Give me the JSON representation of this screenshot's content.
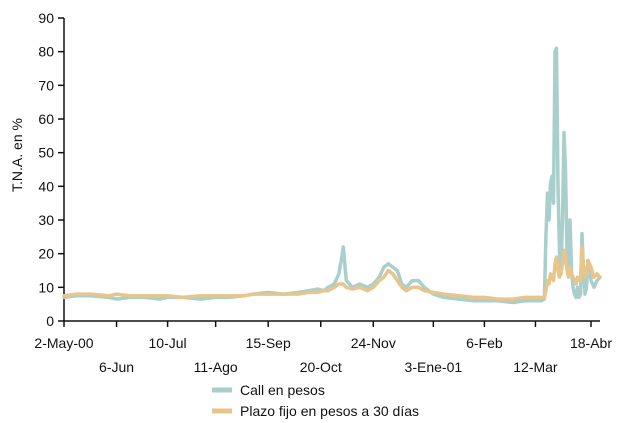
{
  "chart_data": {
    "type": "line",
    "title": "",
    "ylabel": "T.N.A. en %",
    "xlabel": "",
    "ylim": [
      0,
      90
    ],
    "yticks": [
      0,
      10,
      20,
      30,
      40,
      50,
      60,
      70,
      80,
      90
    ],
    "xlim": [
      "2000-05-02",
      "2001-04-24"
    ],
    "x_tick_rows": [
      [
        {
          "label": "2-May-00",
          "date": "2000-05-02"
        },
        {
          "label": "10-Jul",
          "date": "2000-07-10"
        },
        {
          "label": "15-Sep",
          "date": "2000-09-15"
        },
        {
          "label": "24-Nov",
          "date": "2000-11-24"
        },
        {
          "label": "6-Feb",
          "date": "2001-02-06"
        },
        {
          "label": "18-Abr",
          "date": "2001-04-18"
        }
      ],
      [
        {
          "label": "6-Jun",
          "date": "2000-06-06"
        },
        {
          "label": "11-Ago",
          "date": "2000-08-11"
        },
        {
          "label": "20-Oct",
          "date": "2000-10-20"
        },
        {
          "label": "3-Ene-01",
          "date": "2001-01-03"
        },
        {
          "label": "12-Mar",
          "date": "2001-03-12"
        }
      ]
    ],
    "legend_position": "bottom-center",
    "grid": false,
    "series": [
      {
        "name": "Call en pesos",
        "color": "#a9cfcd",
        "points": [
          [
            "2000-05-02",
            7
          ],
          [
            "2000-05-10",
            7.5
          ],
          [
            "2000-05-20",
            7.5
          ],
          [
            "2000-06-01",
            7
          ],
          [
            "2000-06-06",
            6.5
          ],
          [
            "2000-06-15",
            7
          ],
          [
            "2000-06-25",
            7
          ],
          [
            "2000-07-05",
            6.5
          ],
          [
            "2000-07-10",
            7
          ],
          [
            "2000-07-20",
            7
          ],
          [
            "2000-08-01",
            6.5
          ],
          [
            "2000-08-11",
            7
          ],
          [
            "2000-08-20",
            7
          ],
          [
            "2000-08-30",
            7.5
          ],
          [
            "2000-09-05",
            8
          ],
          [
            "2000-09-15",
            8.5
          ],
          [
            "2000-09-25",
            8
          ],
          [
            "2000-10-05",
            8.5
          ],
          [
            "2000-10-12",
            9
          ],
          [
            "2000-10-18",
            9.5
          ],
          [
            "2000-10-22",
            9
          ],
          [
            "2000-10-25",
            10
          ],
          [
            "2000-10-29",
            11
          ],
          [
            "2000-11-01",
            14
          ],
          [
            "2000-11-03",
            19
          ],
          [
            "2000-11-04",
            22
          ],
          [
            "2000-11-06",
            12
          ],
          [
            "2000-11-10",
            10
          ],
          [
            "2000-11-15",
            11
          ],
          [
            "2000-11-20",
            10
          ],
          [
            "2000-11-24",
            11
          ],
          [
            "2000-11-28",
            13
          ],
          [
            "2000-12-01",
            16
          ],
          [
            "2000-12-04",
            17
          ],
          [
            "2000-12-07",
            16
          ],
          [
            "2000-12-10",
            15
          ],
          [
            "2000-12-13",
            11
          ],
          [
            "2000-12-16",
            10
          ],
          [
            "2000-12-20",
            12
          ],
          [
            "2000-12-24",
            12
          ],
          [
            "2000-12-28",
            10
          ],
          [
            "2001-01-03",
            8
          ],
          [
            "2001-01-10",
            7
          ],
          [
            "2001-01-20",
            6.5
          ],
          [
            "2001-01-30",
            6
          ],
          [
            "2001-02-06",
            6
          ],
          [
            "2001-02-15",
            6
          ],
          [
            "2001-02-25",
            5.5
          ],
          [
            "2001-03-05",
            6
          ],
          [
            "2001-03-12",
            6
          ],
          [
            "2001-03-16",
            6
          ],
          [
            "2001-03-18",
            6.5
          ],
          [
            "2001-03-19",
            25
          ],
          [
            "2001-03-20",
            38
          ],
          [
            "2001-03-21",
            30
          ],
          [
            "2001-03-22",
            41
          ],
          [
            "2001-03-23",
            43
          ],
          [
            "2001-03-24",
            35
          ],
          [
            "2001-03-25",
            80
          ],
          [
            "2001-03-26",
            81
          ],
          [
            "2001-03-27",
            40
          ],
          [
            "2001-03-28",
            20
          ],
          [
            "2001-03-29",
            15
          ],
          [
            "2001-03-30",
            30
          ],
          [
            "2001-03-31",
            56
          ],
          [
            "2001-04-01",
            45
          ],
          [
            "2001-04-02",
            20
          ],
          [
            "2001-04-03",
            15
          ],
          [
            "2001-04-04",
            30
          ],
          [
            "2001-04-05",
            15
          ],
          [
            "2001-04-06",
            10
          ],
          [
            "2001-04-07",
            8
          ],
          [
            "2001-04-08",
            7
          ],
          [
            "2001-04-09",
            10
          ],
          [
            "2001-04-10",
            7
          ],
          [
            "2001-04-11",
            8
          ],
          [
            "2001-04-12",
            26
          ],
          [
            "2001-04-13",
            15
          ],
          [
            "2001-04-14",
            8
          ],
          [
            "2001-04-15",
            10
          ],
          [
            "2001-04-16",
            18
          ],
          [
            "2001-04-17",
            16
          ],
          [
            "2001-04-18",
            12
          ],
          [
            "2001-04-20",
            10
          ],
          [
            "2001-04-22",
            12
          ],
          [
            "2001-04-24",
            13
          ]
        ]
      },
      {
        "name": "Plazo fijo en pesos a 30 días",
        "color": "#e8c58a",
        "points": [
          [
            "2000-05-02",
            7.5
          ],
          [
            "2000-05-10",
            8
          ],
          [
            "2000-05-20",
            8
          ],
          [
            "2000-06-01",
            7.5
          ],
          [
            "2000-06-06",
            8
          ],
          [
            "2000-06-15",
            7.5
          ],
          [
            "2000-06-25",
            7.5
          ],
          [
            "2000-07-05",
            7.5
          ],
          [
            "2000-07-10",
            7.5
          ],
          [
            "2000-07-20",
            7
          ],
          [
            "2000-08-01",
            7.5
          ],
          [
            "2000-08-11",
            7.5
          ],
          [
            "2000-08-20",
            7.5
          ],
          [
            "2000-08-30",
            7.5
          ],
          [
            "2000-09-05",
            8
          ],
          [
            "2000-09-15",
            8
          ],
          [
            "2000-09-25",
            8
          ],
          [
            "2000-10-05",
            8
          ],
          [
            "2000-10-12",
            8.5
          ],
          [
            "2000-10-18",
            8.5
          ],
          [
            "2000-10-22",
            9
          ],
          [
            "2000-10-25",
            9
          ],
          [
            "2000-10-29",
            10
          ],
          [
            "2000-11-01",
            11
          ],
          [
            "2000-11-03",
            11
          ],
          [
            "2000-11-04",
            11
          ],
          [
            "2000-11-06",
            10
          ],
          [
            "2000-11-10",
            9.5
          ],
          [
            "2000-11-15",
            10
          ],
          [
            "2000-11-20",
            9
          ],
          [
            "2000-11-24",
            10
          ],
          [
            "2000-11-28",
            12
          ],
          [
            "2000-12-01",
            13
          ],
          [
            "2000-12-04",
            15
          ],
          [
            "2000-12-07",
            14
          ],
          [
            "2000-12-10",
            12
          ],
          [
            "2000-12-13",
            10
          ],
          [
            "2000-12-16",
            9
          ],
          [
            "2000-12-20",
            10
          ],
          [
            "2000-12-24",
            10
          ],
          [
            "2000-12-28",
            9
          ],
          [
            "2001-01-03",
            8.5
          ],
          [
            "2001-01-10",
            8
          ],
          [
            "2001-01-20",
            7.5
          ],
          [
            "2001-01-30",
            7
          ],
          [
            "2001-02-06",
            7
          ],
          [
            "2001-02-15",
            6.5
          ],
          [
            "2001-02-25",
            6.5
          ],
          [
            "2001-03-05",
            7
          ],
          [
            "2001-03-12",
            7
          ],
          [
            "2001-03-16",
            7
          ],
          [
            "2001-03-18",
            7
          ],
          [
            "2001-03-19",
            9
          ],
          [
            "2001-03-20",
            12
          ],
          [
            "2001-03-21",
            11
          ],
          [
            "2001-03-22",
            14
          ],
          [
            "2001-03-23",
            13
          ],
          [
            "2001-03-24",
            12
          ],
          [
            "2001-03-25",
            17
          ],
          [
            "2001-03-26",
            19
          ],
          [
            "2001-03-27",
            15
          ],
          [
            "2001-03-28",
            13
          ],
          [
            "2001-03-29",
            14
          ],
          [
            "2001-03-30",
            17
          ],
          [
            "2001-03-31",
            21
          ],
          [
            "2001-04-01",
            19
          ],
          [
            "2001-04-02",
            15
          ],
          [
            "2001-04-03",
            13
          ],
          [
            "2001-04-04",
            16
          ],
          [
            "2001-04-05",
            14
          ],
          [
            "2001-04-06",
            13
          ],
          [
            "2001-04-07",
            12
          ],
          [
            "2001-04-08",
            11
          ],
          [
            "2001-04-09",
            13
          ],
          [
            "2001-04-10",
            12
          ],
          [
            "2001-04-11",
            12
          ],
          [
            "2001-04-12",
            22
          ],
          [
            "2001-04-13",
            16
          ],
          [
            "2001-04-14",
            13
          ],
          [
            "2001-04-15",
            14
          ],
          [
            "2001-04-16",
            18
          ],
          [
            "2001-04-17",
            17
          ],
          [
            "2001-04-18",
            16
          ],
          [
            "2001-04-20",
            13
          ],
          [
            "2001-04-22",
            14
          ],
          [
            "2001-04-24",
            13
          ]
        ]
      }
    ]
  }
}
